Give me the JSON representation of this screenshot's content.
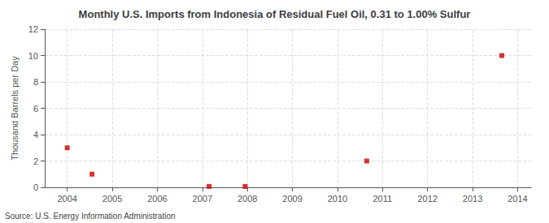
{
  "chart_data": {
    "type": "scatter",
    "title": "Monthly U.S. Imports from Indonesia of Residual Fuel Oil, 0.31 to 1.00% Sulfur",
    "ylabel": "Thousand Barrels per Day",
    "annotations": [
      "Source: U.S. Energy Information Administration"
    ],
    "x": [
      2004.0,
      2004.55,
      2007.15,
      2007.95,
      2010.65,
      2013.65
    ],
    "values": [
      3.0,
      1.0,
      0.07,
      0.07,
      2.0,
      10.0
    ],
    "color": "#cc0000",
    "marker": "square",
    "xlim": [
      2003.5,
      2014.3
    ],
    "xticks": [
      2004,
      2005,
      2006,
      2007,
      2008,
      2009,
      2010,
      2011,
      2012,
      2013,
      2014
    ],
    "ylim": [
      0,
      12
    ],
    "yticks": [
      0,
      2,
      4,
      6,
      8,
      10,
      12
    ],
    "grid": true
  }
}
